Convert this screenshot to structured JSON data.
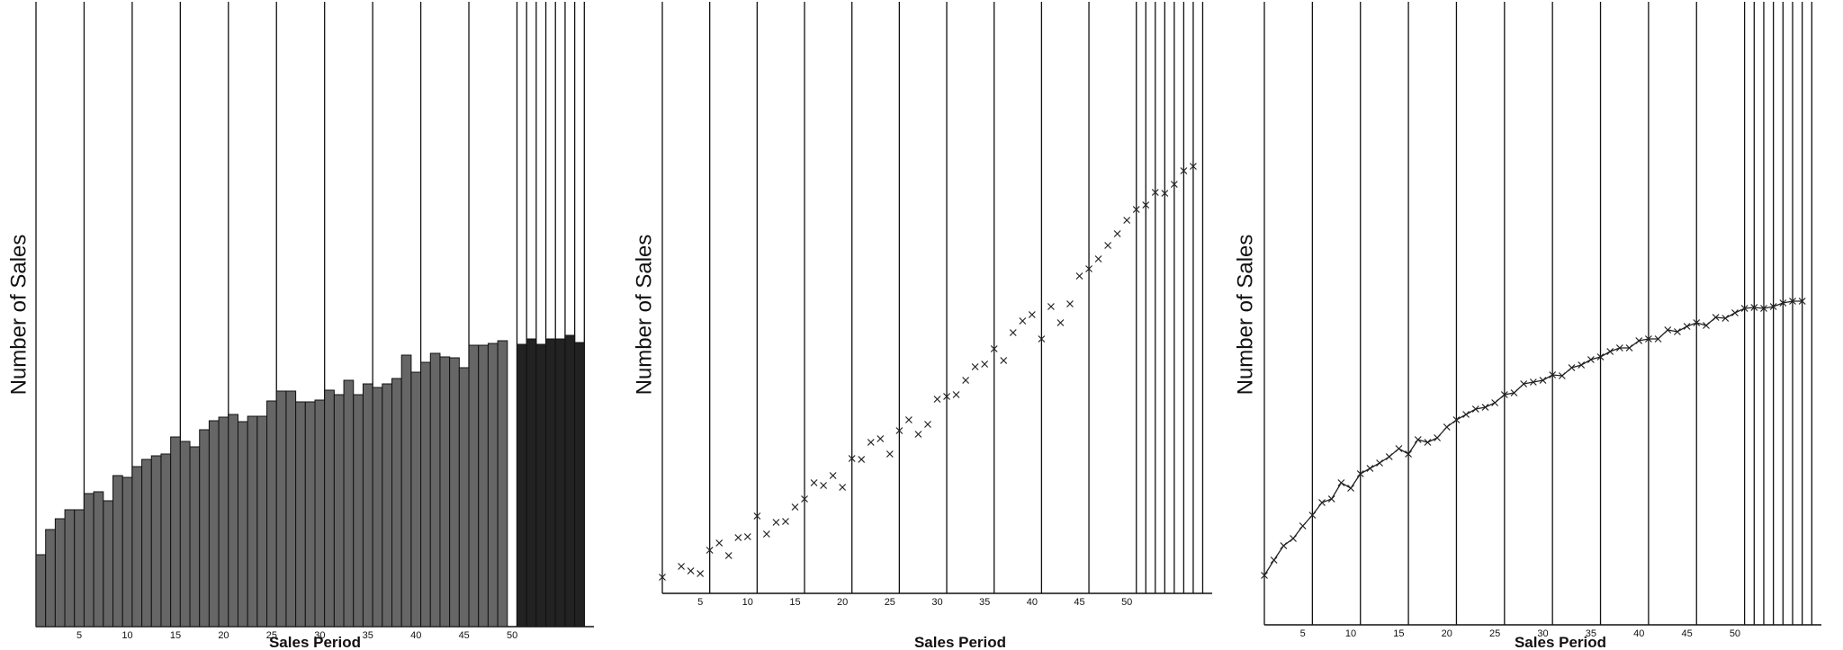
{
  "chart_data": [
    {
      "type": "bar",
      "panel": "left",
      "xlabel": "Sales Period",
      "ylabel": "Number of Sales",
      "x_ticks": [
        "5",
        "10",
        "15",
        "20",
        "25",
        "30",
        "35",
        "40",
        "45",
        "50"
      ],
      "colors": {
        "historical": "#666666",
        "forecast": "#222222",
        "grid": "#111111"
      },
      "x": [
        1,
        2,
        3,
        4,
        5,
        6,
        7,
        8,
        9,
        10,
        11,
        12,
        13,
        14,
        15,
        16,
        17,
        18,
        19,
        20,
        21,
        22,
        23,
        24,
        25,
        26,
        27,
        28,
        29,
        30,
        31,
        32,
        33,
        34,
        35,
        36,
        37,
        38,
        39,
        40,
        41,
        42,
        43,
        44,
        45,
        46,
        47,
        48,
        49,
        50,
        51,
        52,
        53,
        54,
        55,
        56,
        57,
        58
      ],
      "values": [
        80,
        108,
        120,
        130,
        130,
        148,
        150,
        140,
        168,
        166,
        178,
        186,
        190,
        192,
        211,
        206,
        200,
        219,
        229,
        233,
        236,
        228,
        234,
        234,
        251,
        262,
        262,
        250,
        250,
        252,
        263,
        258,
        274,
        258,
        270,
        266,
        270,
        276,
        302,
        283,
        294,
        304,
        300,
        299,
        288,
        313,
        313,
        315,
        318,
        0,
        314,
        320,
        314,
        320,
        320,
        324,
        316,
        0
      ],
      "values_forecast_start_index": 50,
      "grid": true,
      "vertical_gridlines_at": [
        1,
        6,
        11,
        16,
        21,
        26,
        31,
        36,
        41,
        46,
        51,
        52,
        53,
        54,
        55,
        56,
        57,
        58
      ]
    },
    {
      "type": "scatter",
      "panel": "middle",
      "xlabel": "Sales Period",
      "ylabel": "Number of Sales",
      "x_ticks": [
        "5",
        "10",
        "15",
        "20",
        "25",
        "30",
        "35",
        "40",
        "45",
        "50"
      ],
      "marker": "x",
      "x": [
        1,
        2,
        3,
        4,
        5,
        6,
        7,
        8,
        9,
        10,
        11,
        12,
        13,
        14,
        15,
        16,
        17,
        18,
        19,
        20,
        21,
        22,
        23,
        24,
        25,
        26,
        27,
        28,
        29,
        30,
        31,
        32,
        33,
        34,
        35,
        36,
        37,
        38,
        39,
        40,
        41,
        42,
        43,
        44,
        45,
        46,
        47,
        48,
        49,
        50,
        51,
        52,
        53,
        54,
        55,
        56,
        57,
        58
      ],
      "values": [
        18,
        0,
        30,
        25,
        22,
        48,
        56,
        42,
        62,
        63,
        86,
        66,
        79,
        80,
        96,
        105,
        123,
        120,
        131,
        118,
        150,
        149,
        168,
        172,
        155,
        181,
        193,
        177,
        188,
        216,
        219,
        221,
        237,
        252,
        255,
        272,
        259,
        290,
        303,
        310,
        283,
        319,
        301,
        322,
        353,
        361,
        372,
        387,
        400,
        415,
        427,
        432,
        446,
        445,
        455,
        470,
        475,
        0
      ],
      "grid": true,
      "vertical_gridlines_at": [
        1,
        6,
        11,
        16,
        21,
        26,
        31,
        36,
        41,
        46,
        51,
        52,
        53,
        54,
        55,
        56,
        57,
        58
      ]
    },
    {
      "type": "line",
      "panel": "right",
      "xlabel": "Sales Period",
      "ylabel": "Number of Sales",
      "x_ticks": [
        "5",
        "10",
        "15",
        "20",
        "25",
        "30",
        "35",
        "40",
        "45",
        "50"
      ],
      "marker": "x",
      "x": [
        1,
        2,
        3,
        4,
        5,
        6,
        7,
        8,
        9,
        10,
        11,
        12,
        13,
        14,
        15,
        16,
        17,
        18,
        19,
        20,
        21,
        22,
        23,
        24,
        25,
        26,
        27,
        28,
        29,
        30,
        31,
        32,
        33,
        34,
        35,
        36,
        37,
        38,
        39,
        40,
        41,
        42,
        43,
        44,
        45,
        46,
        47,
        48,
        49,
        50,
        51,
        52,
        53,
        54,
        55,
        56,
        57,
        58
      ],
      "values": [
        55,
        72,
        88,
        96,
        110,
        122,
        136,
        140,
        158,
        152,
        168,
        174,
        180,
        187,
        196,
        190,
        206,
        203,
        208,
        220,
        228,
        234,
        240,
        242,
        247,
        256,
        258,
        268,
        270,
        272,
        278,
        277,
        286,
        289,
        295,
        298,
        304,
        308,
        308,
        316,
        318,
        318,
        328,
        326,
        332,
        336,
        333,
        342,
        341,
        347,
        352,
        353,
        352,
        354,
        358,
        360,
        360,
        0
      ],
      "grid": true,
      "vertical_gridlines_at": [
        1,
        6,
        11,
        16,
        21,
        26,
        31,
        36,
        41,
        46,
        51,
        52,
        53,
        54,
        55,
        56,
        57,
        58
      ]
    }
  ]
}
